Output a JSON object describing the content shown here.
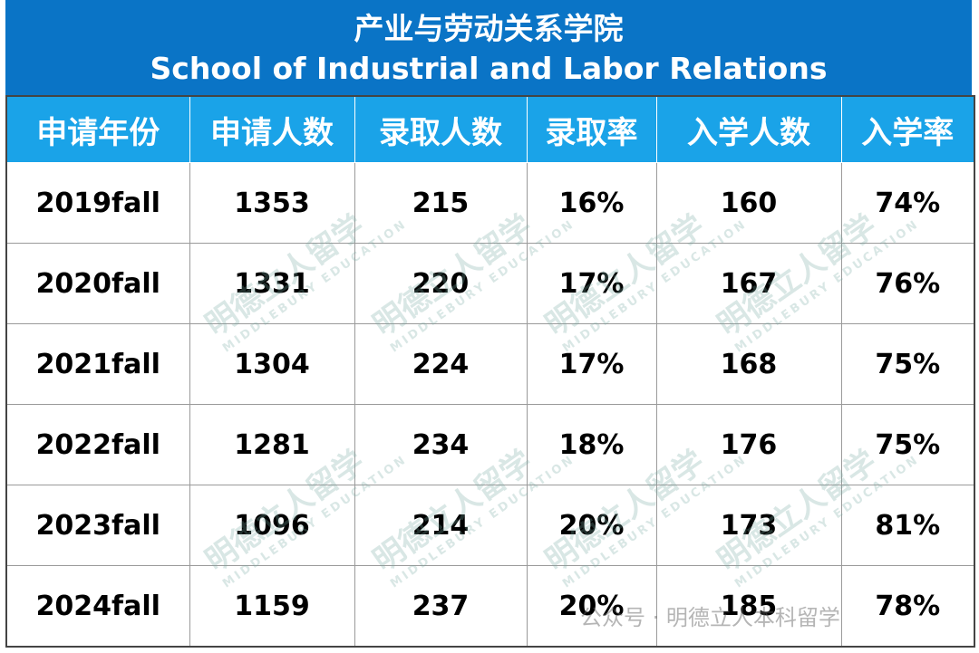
{
  "header": {
    "title_cn": "产业与劳动关系学院",
    "title_en": "School of Industrial and Labor Relations"
  },
  "table": {
    "columns": [
      "申请年份",
      "申请人数",
      "录取人数",
      "录取率",
      "入学人数",
      "入学率"
    ],
    "rows": [
      [
        "2019fall",
        "1353",
        "215",
        "16%",
        "160",
        "74%"
      ],
      [
        "2020fall",
        "1331",
        "220",
        "17%",
        "167",
        "76%"
      ],
      [
        "2021fall",
        "1304",
        "224",
        "17%",
        "168",
        "75%"
      ],
      [
        "2022fall",
        "1281",
        "234",
        "18%",
        "176",
        "75%"
      ],
      [
        "2023fall",
        "1096",
        "214",
        "20%",
        "173",
        "81%"
      ],
      [
        "2024fall",
        "1159",
        "237",
        "20%",
        "185",
        "78%"
      ]
    ]
  },
  "watermark": {
    "brand": "明德立人留学",
    "brand_en": "MIDDLEBURY EDUCATION",
    "account": "公众号 · 明德立人本科留学"
  }
}
